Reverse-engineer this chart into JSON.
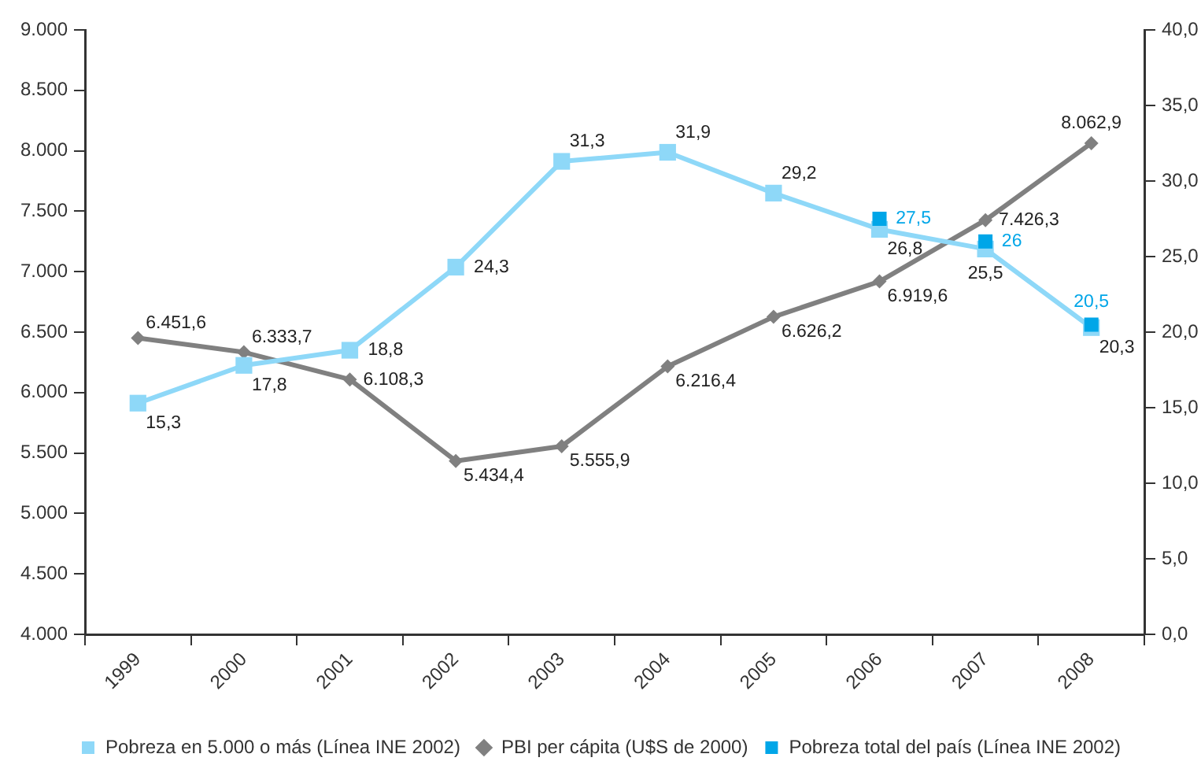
{
  "chart_data": {
    "type": "line",
    "categories": [
      "1999",
      "2000",
      "2001",
      "2002",
      "2003",
      "2004",
      "2005",
      "2006",
      "2007",
      "2008"
    ],
    "series": [
      {
        "name": "Pobreza en 5.000 o más (Línea INE 2002)",
        "color": "#8ed8f8",
        "marker": "square",
        "axis": "y2",
        "values": [
          15.3,
          17.8,
          18.8,
          24.3,
          31.3,
          31.9,
          29.2,
          26.8,
          25.5,
          20.3
        ],
        "value_labels": [
          "15,3",
          "17,8",
          "18,8",
          "24,3",
          "31,3",
          "31,9",
          "29,2",
          "26,8",
          "25,5",
          "20,3"
        ]
      },
      {
        "name": "PBI per cápita (U$S de 2000)",
        "color": "#808080",
        "marker": "diamond",
        "axis": "y",
        "values": [
          6451.6,
          6333.7,
          6108.3,
          5434.4,
          5555.9,
          6216.4,
          6626.2,
          6919.6,
          7426.3,
          8062.9
        ],
        "value_labels": [
          "6.451,6",
          "6.333,7",
          "6.108,3",
          "5.434,4",
          "5.555,9",
          "6.216,4",
          "6.626,2",
          "6.919,6",
          "7.426,3",
          "8.062,9"
        ]
      },
      {
        "name": "Pobreza total del país (Línea INE 2002)",
        "type": "scatter",
        "color": "#00a6e8",
        "marker": "square",
        "axis": "y2",
        "values": [
          null,
          null,
          null,
          null,
          null,
          null,
          null,
          27.5,
          26,
          20.5
        ],
        "value_labels": [
          null,
          null,
          null,
          null,
          null,
          null,
          null,
          "27,5",
          "26",
          "20,5"
        ]
      }
    ],
    "ylim": [
      4000,
      9000
    ],
    "yticks": [
      {
        "value": 4000,
        "label": "4.000"
      },
      {
        "value": 4500,
        "label": "4.500"
      },
      {
        "value": 5000,
        "label": "5.000"
      },
      {
        "value": 5500,
        "label": "5.500"
      },
      {
        "value": 6000,
        "label": "6.000"
      },
      {
        "value": 6500,
        "label": "6.500"
      },
      {
        "value": 7000,
        "label": "7.000"
      },
      {
        "value": 7500,
        "label": "7.500"
      },
      {
        "value": 8000,
        "label": "8.000"
      },
      {
        "value": 8500,
        "label": "8.500"
      },
      {
        "value": 9000,
        "label": "9.000"
      }
    ],
    "y2lim": [
      0,
      40
    ],
    "y2ticks": [
      {
        "value": 0,
        "label": "0,0"
      },
      {
        "value": 5,
        "label": "5,0"
      },
      {
        "value": 10,
        "label": "10,0"
      },
      {
        "value": 15,
        "label": "15,0"
      },
      {
        "value": 20,
        "label": "20,0"
      },
      {
        "value": 25,
        "label": "25,0"
      },
      {
        "value": 30,
        "label": "30,0"
      },
      {
        "value": 35,
        "label": "35,0"
      },
      {
        "value": 40,
        "label": "40,0"
      }
    ],
    "grid": false,
    "legend": "bottom",
    "line_style": "solid"
  }
}
